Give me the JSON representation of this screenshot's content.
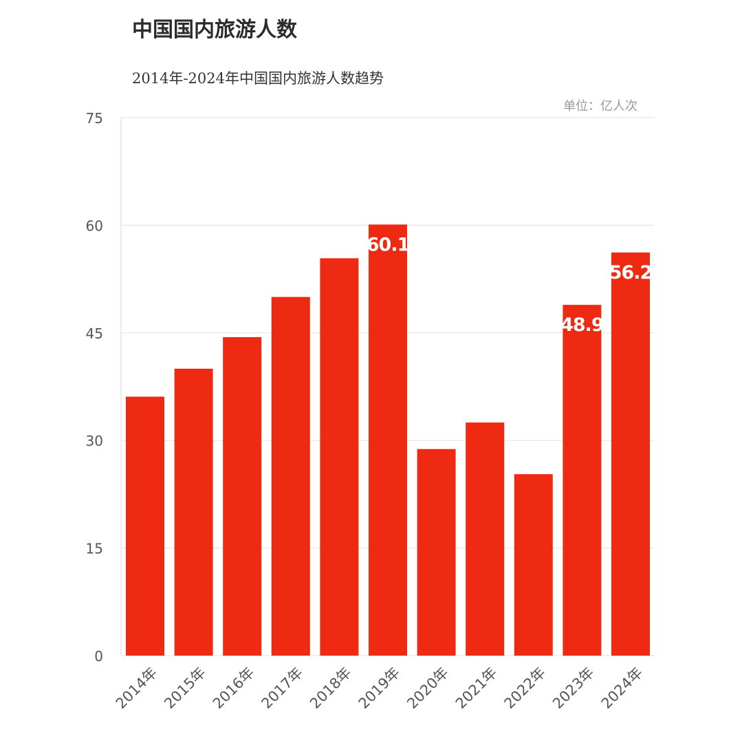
{
  "title": "中国国内旅游人数",
  "subtitle": "2014年-2024年中国国内旅游人数趋势",
  "unit": "单位：亿人次",
  "colors": {
    "bar": "#ee2a12",
    "grid": "#e6e6e6",
    "axis_text": "#555555",
    "value_label": "#ffffff"
  },
  "chart_data": {
    "type": "bar",
    "categories": [
      "2014年",
      "2015年",
      "2016年",
      "2017年",
      "2018年",
      "2019年",
      "2020年",
      "2021年",
      "2022年",
      "2023年",
      "2024年"
    ],
    "values": [
      36.1,
      40.0,
      44.4,
      50.0,
      55.4,
      60.1,
      28.8,
      32.5,
      25.3,
      48.9,
      56.2
    ],
    "data_labels": [
      null,
      null,
      null,
      null,
      null,
      "60.1",
      null,
      null,
      null,
      "48.9",
      "56.2"
    ],
    "yticks": [
      "0",
      "15",
      "30",
      "45",
      "60",
      "75"
    ],
    "ylim": [
      0,
      75
    ],
    "grid": true,
    "legend": "none"
  }
}
